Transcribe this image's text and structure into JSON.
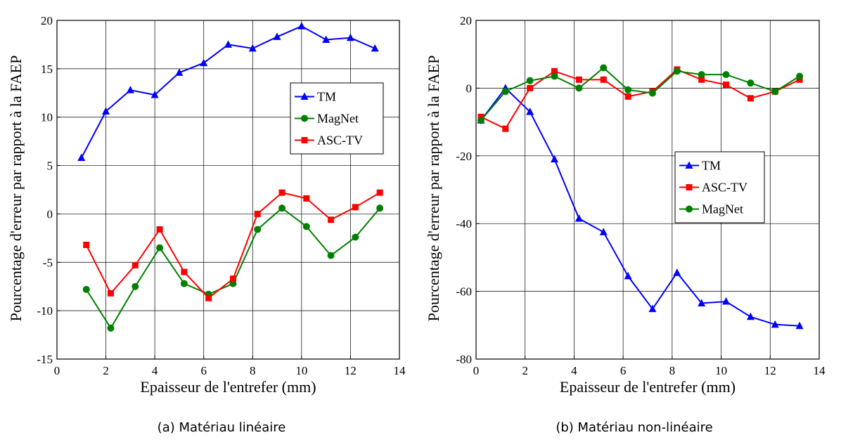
{
  "colors": {
    "TM": "#0000ff",
    "MagNet": "#008000",
    "ASC-TV": "#ff0000"
  },
  "chart_data": [
    {
      "type": "line",
      "caption": "(a) Matériau linéaire",
      "xlabel": "Epaisseur de l'entrefer (mm)",
      "ylabel": "Pourcentage d'erreur par rapport à la FAEP",
      "xlim": [
        0,
        14
      ],
      "ylim": [
        -15,
        20
      ],
      "xticks": [
        0,
        2,
        4,
        6,
        8,
        10,
        12,
        14
      ],
      "yticks": [
        -15,
        -10,
        -5,
        0,
        5,
        10,
        15,
        20
      ],
      "grid": true,
      "legend_position": "top-right",
      "legend_order": [
        "TM",
        "MagNet",
        "ASC-TV"
      ],
      "series": [
        {
          "name": "TM",
          "marker": "triangle",
          "x": [
            1,
            2,
            3,
            4,
            5,
            6,
            7,
            8,
            9,
            10,
            11,
            12,
            13
          ],
          "y": [
            5.8,
            10.6,
            12.8,
            12.3,
            14.6,
            15.6,
            17.5,
            17.1,
            18.3,
            19.4,
            18.0,
            18.2,
            17.1
          ]
        },
        {
          "name": "MagNet",
          "marker": "circle",
          "x": [
            1.2,
            2.2,
            3.2,
            4.2,
            5.2,
            6.2,
            7.2,
            8.2,
            9.2,
            10.2,
            11.2,
            12.2,
            13.2
          ],
          "y": [
            -7.8,
            -11.8,
            -7.5,
            -3.5,
            -7.2,
            -8.3,
            -7.2,
            -1.6,
            0.6,
            -1.3,
            -4.3,
            -2.4,
            0.6
          ]
        },
        {
          "name": "ASC-TV",
          "marker": "square",
          "x": [
            1.2,
            2.2,
            3.2,
            4.2,
            5.2,
            6.2,
            7.2,
            8.2,
            9.2,
            10.2,
            11.2,
            12.2,
            13.2
          ],
          "y": [
            -3.2,
            -8.2,
            -5.3,
            -1.6,
            -6.0,
            -8.7,
            -6.7,
            0.0,
            2.2,
            1.6,
            -0.6,
            0.7,
            2.2
          ]
        }
      ]
    },
    {
      "type": "line",
      "caption": "(b) Matériau non-linéaire",
      "xlabel": "Epaisseur de l'entrefer (mm)",
      "ylabel": "Pourcentage d'erreur par rapport à la FAEP",
      "xlim": [
        0,
        14
      ],
      "ylim": [
        -80,
        20
      ],
      "xticks": [
        0,
        2,
        4,
        6,
        8,
        10,
        12,
        14
      ],
      "yticks": [
        -80,
        -60,
        -40,
        -20,
        0,
        20
      ],
      "grid": true,
      "legend_position": "center-right",
      "legend_order": [
        "TM",
        "ASC-TV",
        "MagNet"
      ],
      "series": [
        {
          "name": "TM",
          "marker": "triangle",
          "x": [
            0.2,
            1.2,
            2.2,
            3.2,
            4.2,
            5.2,
            6.2,
            7.2,
            8.2,
            9.2,
            10.2,
            11.2,
            12.2,
            13.2
          ],
          "y": [
            -9.5,
            0,
            -7,
            -21,
            -38.5,
            -42.5,
            -55.5,
            -65.2,
            -54.5,
            -63.5,
            -63.0,
            -67.5,
            -69.8,
            -70.2
          ]
        },
        {
          "name": "ASC-TV",
          "marker": "square",
          "x": [
            0.2,
            1.2,
            2.2,
            3.2,
            4.2,
            5.2,
            6.2,
            7.2,
            8.2,
            9.2,
            10.2,
            11.2,
            12.2,
            13.2
          ],
          "y": [
            -8.5,
            -12,
            0,
            5,
            2.5,
            2.5,
            -2.5,
            -1,
            5.5,
            2.5,
            1,
            -3,
            -1,
            2.5
          ]
        },
        {
          "name": "MagNet",
          "marker": "circle",
          "x": [
            0.2,
            1.2,
            2.2,
            3.2,
            4.2,
            5.2,
            6.2,
            7.2,
            8.2,
            9.2,
            10.2,
            11.2,
            12.2,
            13.2
          ],
          "y": [
            -9.5,
            -1,
            2.2,
            3.5,
            0,
            6,
            -0.5,
            -1.5,
            5,
            4,
            4,
            1.5,
            -1,
            3.5
          ]
        }
      ]
    }
  ]
}
